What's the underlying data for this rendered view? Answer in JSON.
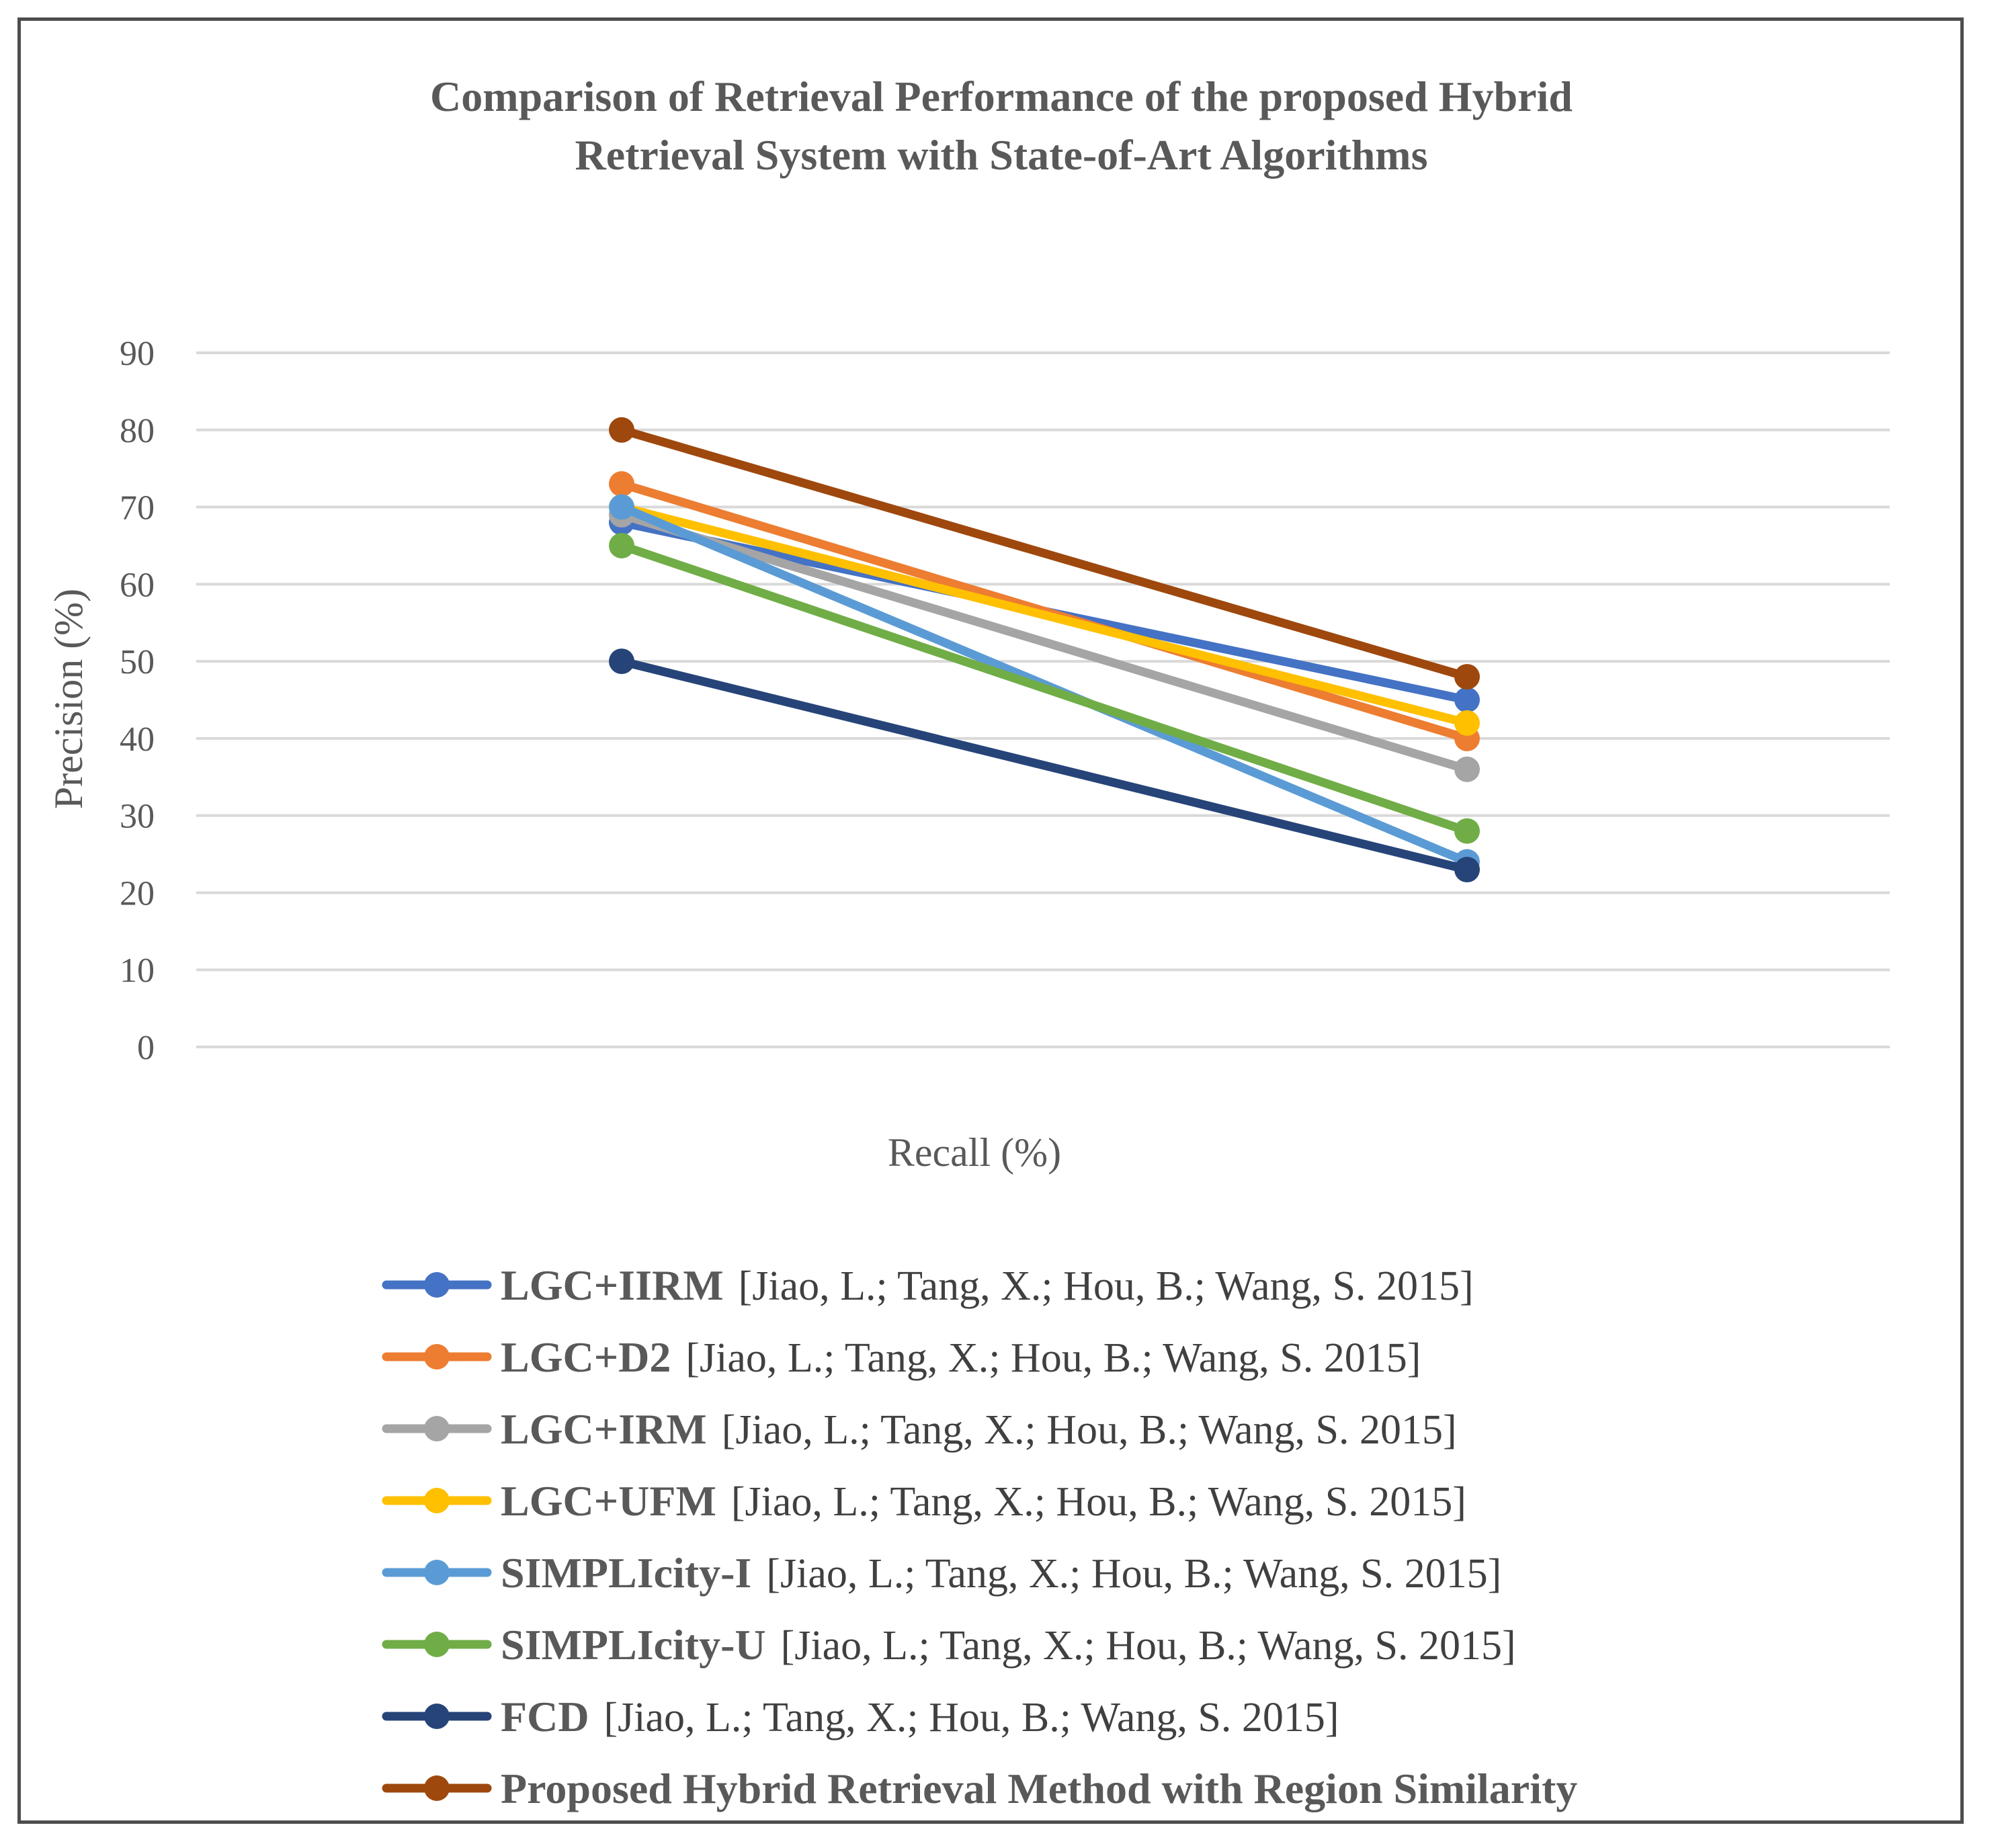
{
  "chart_data": {
    "type": "line",
    "title": [
      "Comparison of Retrieval Performance of the proposed Hybrid",
      "Retrieval System with State-of-Art Algorithms"
    ],
    "xlabel": "Recall (%)",
    "ylabel": "Precision (%)",
    "categories": [
      "",
      ""
    ],
    "ylim": [
      0,
      90
    ],
    "yticks": [
      0,
      10,
      20,
      30,
      40,
      50,
      60,
      70,
      80,
      90
    ],
    "grid": true,
    "legend_position": "bottom",
    "series": [
      {
        "name": "LGC+IIRM",
        "citation": "[Jiao, L.; Tang, X.; Hou, B.; Wang, S. 2015]",
        "values": [
          68,
          45
        ],
        "color": "#4472c4"
      },
      {
        "name": "LGC+D2",
        "citation": "[Jiao, L.; Tang, X.; Hou, B.; Wang, S. 2015]",
        "values": [
          73,
          40
        ],
        "color": "#ed7d31"
      },
      {
        "name": "LGC+IRM",
        "citation": "[Jiao, L.; Tang, X.; Hou, B.; Wang, S. 2015]",
        "values": [
          69,
          36
        ],
        "color": "#a5a5a5"
      },
      {
        "name": "LGC+UFM",
        "citation": "[Jiao, L.; Tang, X.; Hou, B.; Wang, S. 2015]",
        "values": [
          70,
          42
        ],
        "color": "#ffc000"
      },
      {
        "name": "SIMPLIcity-I",
        "citation": "[Jiao, L.; Tang, X.; Hou, B.; Wang, S. 2015]",
        "values": [
          70,
          24
        ],
        "color": "#5b9bd5"
      },
      {
        "name": "SIMPLIcity-U",
        "citation": "[Jiao, L.; Tang, X.; Hou, B.; Wang, S. 2015]",
        "values": [
          65,
          28
        ],
        "color": "#70ad47"
      },
      {
        "name": "FCD",
        "citation": "[Jiao, L.; Tang, X.; Hou, B.; Wang, S. 2015]",
        "values": [
          50,
          23
        ],
        "color": "#264478"
      },
      {
        "name": "Proposed Hybrid Retrieval Method with Region Similarity",
        "citation": "",
        "values": [
          80,
          48
        ],
        "color": "#9e480e"
      }
    ]
  }
}
